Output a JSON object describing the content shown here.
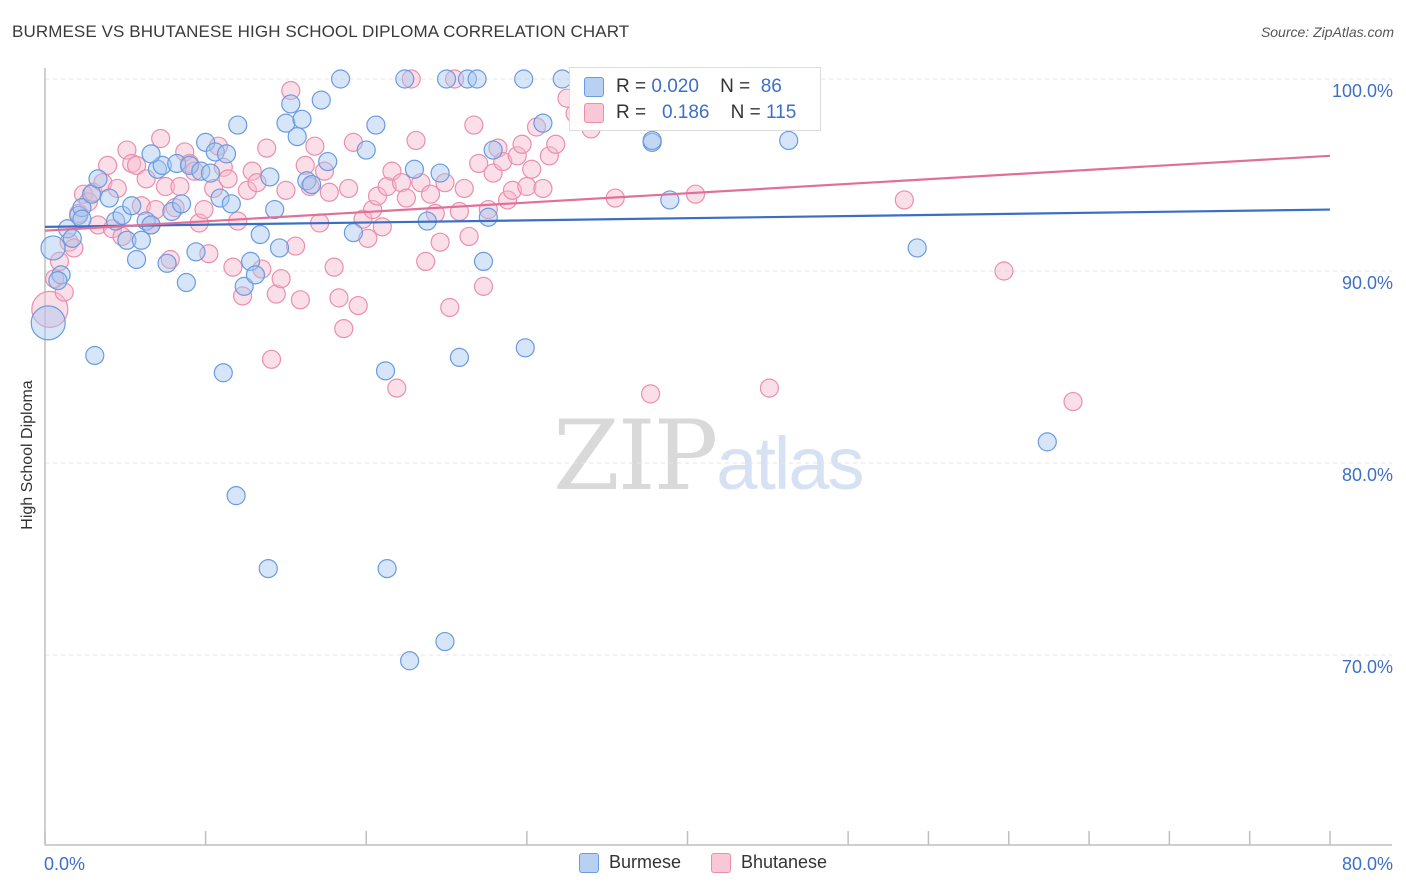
{
  "title": "BURMESE VS BHUTANESE HIGH SCHOOL DIPLOMA CORRELATION CHART",
  "source": "Source: ZipAtlas.com",
  "watermark": {
    "zip": "ZIP",
    "atlas": "atlas"
  },
  "colors": {
    "burmese_fill": "#a7c6f0",
    "burmese_stroke": "#6a9be0",
    "burmese_line": "#3a6fc4",
    "bhutanese_fill": "#f7b9cc",
    "bhutanese_stroke": "#ea8fac",
    "bhutanese_line": "#e0709a",
    "axis_text": "#3d6fc7",
    "grid": "#e6e6e6"
  },
  "legend": {
    "r_label": "R =",
    "n_label": "N =",
    "rows": [
      {
        "r": "0.020",
        "n": "86"
      },
      {
        "r": "0.186",
        "n": "115"
      }
    ]
  },
  "chart_data": {
    "type": "scatter",
    "title": "BURMESE VS BHUTANESE HIGH SCHOOL DIPLOMA CORRELATION CHART",
    "xlabel": "",
    "ylabel": "High School Diploma",
    "xlim": [
      0,
      80
    ],
    "ylim": [
      60,
      101.5
    ],
    "x_tick_labels": [
      "0.0%",
      "80.0%"
    ],
    "y_ticks": [
      70,
      80,
      90,
      100
    ],
    "y_tick_labels": [
      "70.0%",
      "80.0%",
      "90.0%",
      "100.0%"
    ],
    "grid": true,
    "legend_position": "top-center",
    "series": [
      {
        "name": "Burmese",
        "r": 0.02,
        "n": 86,
        "trend": {
          "x": [
            0,
            80
          ],
          "y": [
            92.3,
            93.2
          ]
        },
        "points": [
          [
            0.2,
            87.3
          ],
          [
            0.5,
            91.2
          ],
          [
            1.0,
            89.8
          ],
          [
            1.4,
            92.2
          ],
          [
            1.7,
            91.7
          ],
          [
            2.1,
            92.9
          ],
          [
            2.3,
            93.3
          ],
          [
            2.9,
            94.0
          ],
          [
            3.3,
            94.8
          ],
          [
            2.3,
            92.7
          ],
          [
            4.0,
            93.8
          ],
          [
            4.4,
            92.6
          ],
          [
            4.8,
            92.9
          ],
          [
            5.1,
            91.6
          ],
          [
            5.4,
            93.4
          ],
          [
            5.7,
            90.6
          ],
          [
            6.0,
            91.6
          ],
          [
            6.3,
            92.6
          ],
          [
            6.6,
            92.4
          ],
          [
            7.0,
            95.3
          ],
          [
            7.3,
            95.5
          ],
          [
            7.6,
            90.4
          ],
          [
            7.9,
            93.1
          ],
          [
            8.2,
            95.6
          ],
          [
            8.5,
            93.5
          ],
          [
            8.8,
            89.4
          ],
          [
            9.0,
            95.5
          ],
          [
            9.4,
            91.0
          ],
          [
            9.7,
            95.2
          ],
          [
            10.0,
            96.7
          ],
          [
            10.3,
            95.1
          ],
          [
            10.6,
            96.2
          ],
          [
            10.9,
            93.8
          ],
          [
            11.3,
            96.1
          ],
          [
            11.6,
            93.5
          ],
          [
            12.0,
            97.6
          ],
          [
            12.4,
            89.2
          ],
          [
            12.8,
            90.5
          ],
          [
            13.1,
            89.8
          ],
          [
            13.4,
            91.9
          ],
          [
            14.0,
            94.9
          ],
          [
            14.3,
            93.2
          ],
          [
            14.6,
            91.2
          ],
          [
            15.0,
            97.7
          ],
          [
            15.3,
            98.7
          ],
          [
            15.7,
            97.0
          ],
          [
            16.0,
            97.9
          ],
          [
            16.3,
            94.7
          ],
          [
            16.6,
            94.5
          ],
          [
            17.2,
            98.9
          ],
          [
            17.6,
            95.7
          ],
          [
            18.4,
            100.0
          ],
          [
            19.2,
            92.0
          ],
          [
            20.0,
            96.3
          ],
          [
            20.6,
            97.6
          ],
          [
            22.4,
            100.0
          ],
          [
            23.0,
            95.3
          ],
          [
            23.8,
            92.6
          ],
          [
            24.6,
            95.1
          ],
          [
            25.0,
            100.0
          ],
          [
            26.3,
            100.0
          ],
          [
            26.9,
            100.0
          ],
          [
            27.3,
            90.5
          ],
          [
            27.6,
            92.8
          ],
          [
            27.9,
            96.3
          ],
          [
            29.8,
            100.0
          ],
          [
            31.0,
            97.7
          ],
          [
            32.2,
            100.0
          ],
          [
            37.8,
            96.7
          ],
          [
            38.9,
            93.7
          ],
          [
            46.3,
            96.8
          ],
          [
            54.3,
            91.2
          ],
          [
            62.4,
            81.1
          ],
          [
            6.6,
            96.1
          ],
          [
            3.1,
            85.6
          ],
          [
            11.1,
            84.7
          ],
          [
            21.2,
            84.8
          ],
          [
            25.8,
            85.5
          ],
          [
            29.9,
            86.0
          ],
          [
            11.9,
            78.3
          ],
          [
            13.9,
            74.5
          ],
          [
            21.3,
            74.5
          ],
          [
            24.9,
            70.7
          ],
          [
            22.7,
            69.7
          ],
          [
            37.8,
            96.8
          ],
          [
            0.8,
            89.5
          ]
        ]
      },
      {
        "name": "Bhutanese",
        "r": 0.186,
        "n": 115,
        "trend": {
          "x": [
            0,
            80
          ],
          "y": [
            92.1,
            96.0
          ]
        },
        "points": [
          [
            0.3,
            88.0
          ],
          [
            0.6,
            89.6
          ],
          [
            0.9,
            90.5
          ],
          [
            1.2,
            88.9
          ],
          [
            1.5,
            91.5
          ],
          [
            1.8,
            91.2
          ],
          [
            2.1,
            93.0
          ],
          [
            2.4,
            94.0
          ],
          [
            2.7,
            93.6
          ],
          [
            3.0,
            94.1
          ],
          [
            3.3,
            92.4
          ],
          [
            3.6,
            94.6
          ],
          [
            3.9,
            95.5
          ],
          [
            4.2,
            92.2
          ],
          [
            4.5,
            94.3
          ],
          [
            4.8,
            91.8
          ],
          [
            5.1,
            96.3
          ],
          [
            5.4,
            95.6
          ],
          [
            5.7,
            95.5
          ],
          [
            6.0,
            93.4
          ],
          [
            6.3,
            94.8
          ],
          [
            6.6,
            92.4
          ],
          [
            6.9,
            93.2
          ],
          [
            7.2,
            96.9
          ],
          [
            7.5,
            94.4
          ],
          [
            7.8,
            90.6
          ],
          [
            8.1,
            93.3
          ],
          [
            8.4,
            94.4
          ],
          [
            8.7,
            96.2
          ],
          [
            9.0,
            95.6
          ],
          [
            9.3,
            95.2
          ],
          [
            9.6,
            92.5
          ],
          [
            9.9,
            93.2
          ],
          [
            10.2,
            90.9
          ],
          [
            10.5,
            94.3
          ],
          [
            10.8,
            96.5
          ],
          [
            11.1,
            95.4
          ],
          [
            11.4,
            94.8
          ],
          [
            11.7,
            90.2
          ],
          [
            12.0,
            92.6
          ],
          [
            12.3,
            88.7
          ],
          [
            12.6,
            94.2
          ],
          [
            12.9,
            95.2
          ],
          [
            13.2,
            94.6
          ],
          [
            13.5,
            90.1
          ],
          [
            13.8,
            96.4
          ],
          [
            14.1,
            85.4
          ],
          [
            14.4,
            88.8
          ],
          [
            14.7,
            89.6
          ],
          [
            15.0,
            94.2
          ],
          [
            15.3,
            99.4
          ],
          [
            15.6,
            91.3
          ],
          [
            15.9,
            88.5
          ],
          [
            16.2,
            95.5
          ],
          [
            16.5,
            94.4
          ],
          [
            16.8,
            96.5
          ],
          [
            17.1,
            92.5
          ],
          [
            17.4,
            95.2
          ],
          [
            17.7,
            94.1
          ],
          [
            18.0,
            90.2
          ],
          [
            18.3,
            88.6
          ],
          [
            18.6,
            87.0
          ],
          [
            18.9,
            94.3
          ],
          [
            19.2,
            96.7
          ],
          [
            19.5,
            88.2
          ],
          [
            19.8,
            92.7
          ],
          [
            20.1,
            91.7
          ],
          [
            20.4,
            93.2
          ],
          [
            20.7,
            93.9
          ],
          [
            21.0,
            92.3
          ],
          [
            21.3,
            94.4
          ],
          [
            21.6,
            95.2
          ],
          [
            21.9,
            83.9
          ],
          [
            22.2,
            94.6
          ],
          [
            22.5,
            93.8
          ],
          [
            22.8,
            100.0
          ],
          [
            23.1,
            96.8
          ],
          [
            23.4,
            94.6
          ],
          [
            23.7,
            90.5
          ],
          [
            24.0,
            94.0
          ],
          [
            24.3,
            93.0
          ],
          [
            24.6,
            91.5
          ],
          [
            24.9,
            94.6
          ],
          [
            25.2,
            88.1
          ],
          [
            25.5,
            100.0
          ],
          [
            25.8,
            93.1
          ],
          [
            26.1,
            94.3
          ],
          [
            26.4,
            91.8
          ],
          [
            26.7,
            97.6
          ],
          [
            27.0,
            95.6
          ],
          [
            27.3,
            89.2
          ],
          [
            27.6,
            93.2
          ],
          [
            27.9,
            95.1
          ],
          [
            28.2,
            96.4
          ],
          [
            28.5,
            95.7
          ],
          [
            28.8,
            93.7
          ],
          [
            29.1,
            94.2
          ],
          [
            29.4,
            96.0
          ],
          [
            29.7,
            96.6
          ],
          [
            30.0,
            94.4
          ],
          [
            30.3,
            95.3
          ],
          [
            30.6,
            97.5
          ],
          [
            31.0,
            94.3
          ],
          [
            31.4,
            96.0
          ],
          [
            31.8,
            96.6
          ],
          [
            32.5,
            99.0
          ],
          [
            33.0,
            98.2
          ],
          [
            34.0,
            97.4
          ],
          [
            35.5,
            93.8
          ],
          [
            37.7,
            83.6
          ],
          [
            40.5,
            94.0
          ],
          [
            45.1,
            83.9
          ],
          [
            53.5,
            93.7
          ],
          [
            59.7,
            90.0
          ],
          [
            64.0,
            83.2
          ]
        ]
      }
    ]
  },
  "y_axis_label": "High School Diploma",
  "bottom_legend": [
    "Burmese",
    "Bhutanese"
  ],
  "x_axis_labels": {
    "left": "0.0%",
    "right": "80.0%"
  },
  "y_axis_labels": [
    "100.0%",
    "90.0%",
    "80.0%",
    "70.0%"
  ]
}
